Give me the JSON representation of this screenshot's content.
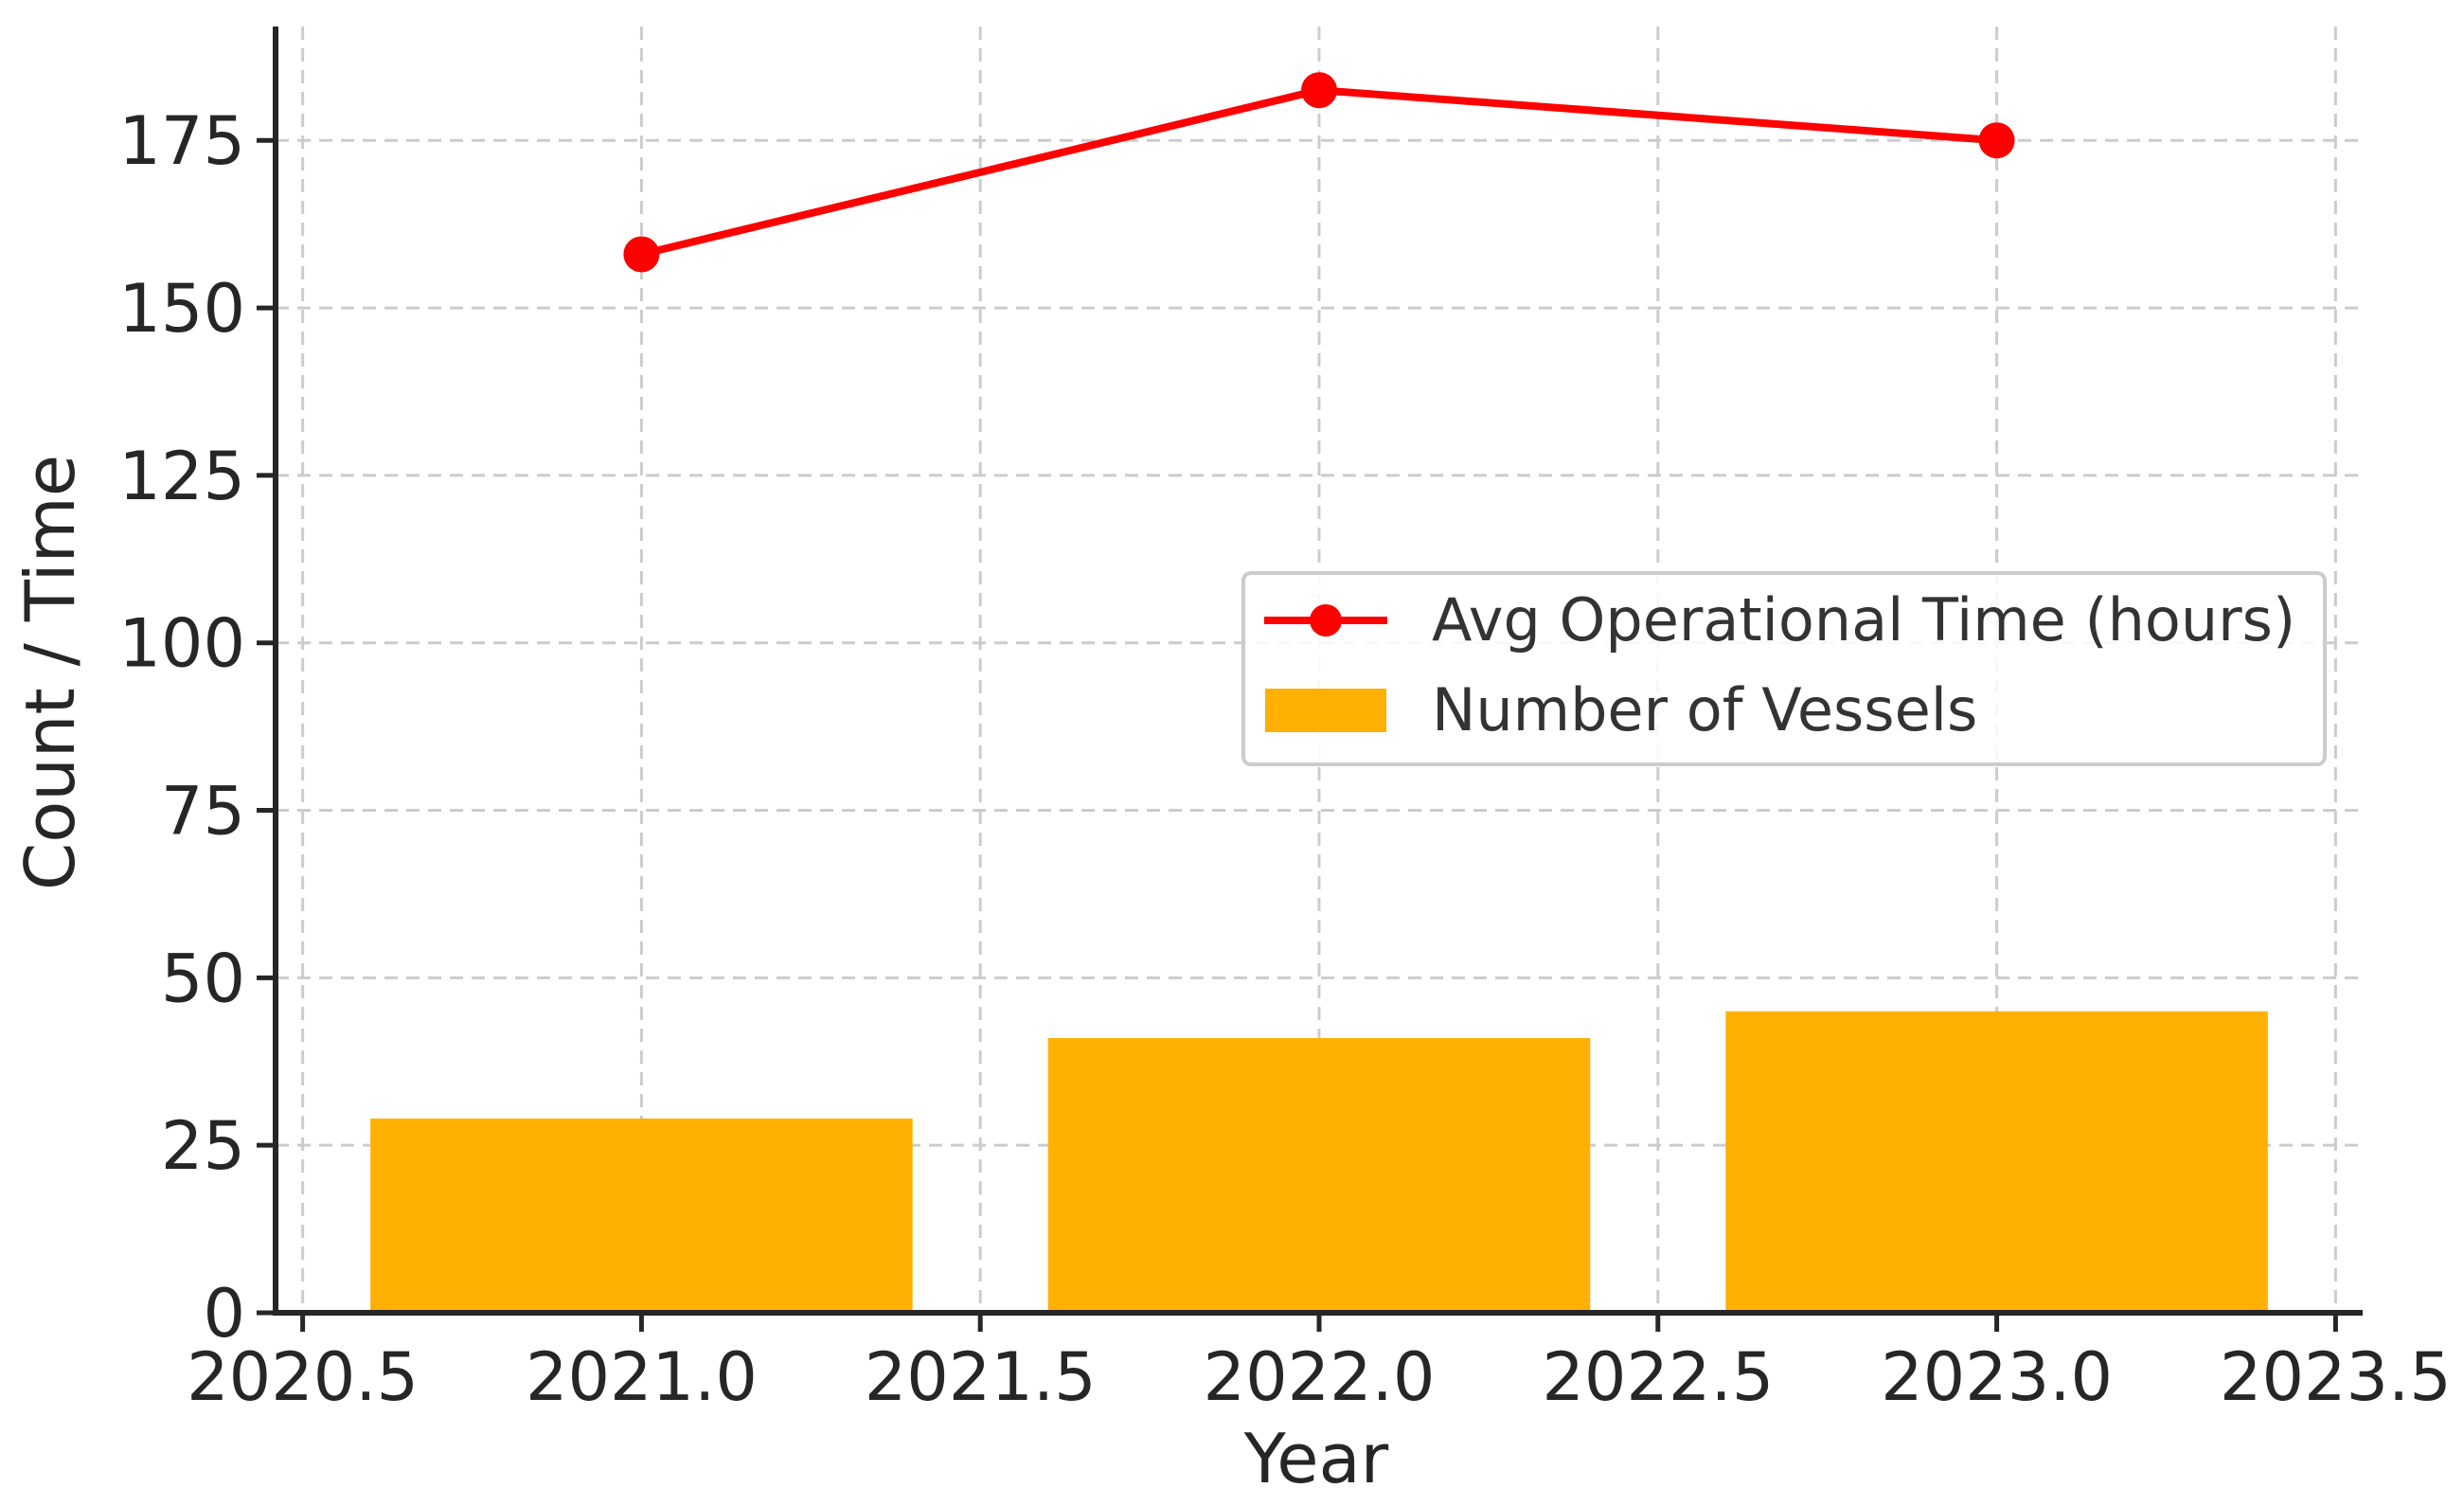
{
  "chart_data": {
    "type": "bar",
    "title": "",
    "xlabel": "Year",
    "ylabel": "Count / Time",
    "xlim": [
      2020.46,
      2023.54
    ],
    "ylim": [
      0,
      192
    ],
    "xticks": [
      2020.5,
      2021.0,
      2021.5,
      2022.0,
      2022.5,
      2023.0,
      2023.5
    ],
    "xtick_labels": [
      "2020.5",
      "2021.0",
      "2021.5",
      "2022.0",
      "2022.5",
      "2023.0",
      "2023.5"
    ],
    "yticks": [
      0,
      25,
      50,
      75,
      100,
      125,
      150,
      175
    ],
    "ytick_labels": [
      "0",
      "25",
      "50",
      "75",
      "100",
      "125",
      "150",
      "175"
    ],
    "grid": true,
    "legend_position": "center-right",
    "series": [
      {
        "name": "Avg Operational Time (hours)",
        "type": "line",
        "color": "#ff0000",
        "marker": "circle",
        "x": [
          2021,
          2022,
          2023
        ],
        "values": [
          158,
          182.5,
          175
        ]
      },
      {
        "name": "Number of Vessels",
        "type": "bar",
        "color": "#ffb000",
        "bar_width": 0.8,
        "x": [
          2021,
          2022,
          2023
        ],
        "values": [
          29,
          41,
          45
        ]
      }
    ]
  }
}
